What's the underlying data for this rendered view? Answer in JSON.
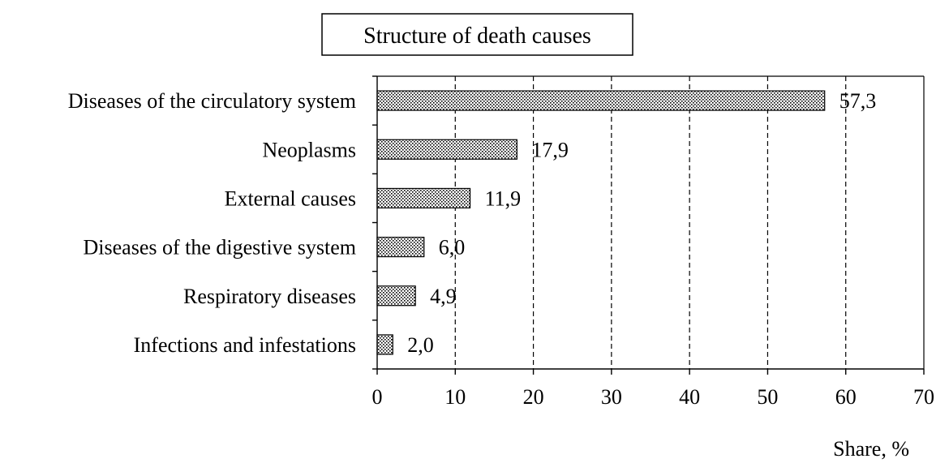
{
  "chart_data": {
    "type": "bar",
    "orientation": "horizontal",
    "title": "Structure of death causes",
    "xlabel": "Share, %",
    "categories": [
      "Diseases of the circulatory system",
      "Neoplasms",
      "External causes",
      "Diseases of the digestive system",
      "Respiratory diseases",
      "Infections and infestations"
    ],
    "values": [
      57.3,
      17.9,
      11.9,
      6.0,
      4.9,
      2.0
    ],
    "value_labels": [
      "57,3",
      "17,9",
      "11,9",
      "6,0",
      "4,9",
      "2,0"
    ],
    "xlim": [
      0,
      70
    ],
    "xticks": [
      0,
      10,
      20,
      30,
      40,
      50,
      60,
      70
    ],
    "xtick_labels": [
      "0",
      "10",
      "20",
      "30",
      "40",
      "50",
      "60",
      "70"
    ],
    "grid": "vertical dashed",
    "legend": "none",
    "bar_pattern": "dotted hatch"
  }
}
